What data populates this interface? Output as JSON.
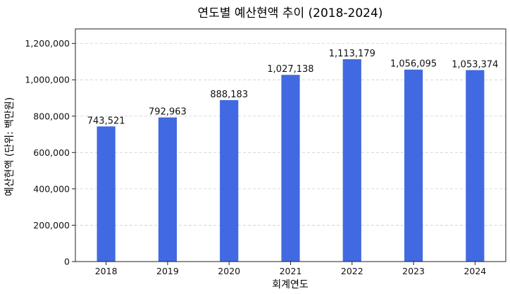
{
  "chart_data": {
    "type": "bar",
    "title": "연도별 예산현액 추이 (2018-2024)",
    "xlabel": "회계연도",
    "ylabel": "예산현액 (단위: 백만원)",
    "categories": [
      "2018",
      "2019",
      "2020",
      "2021",
      "2022",
      "2023",
      "2024"
    ],
    "values": [
      743521,
      792963,
      888183,
      1027138,
      1113179,
      1056095,
      1053374
    ],
    "value_labels": [
      "743,521",
      "792,963",
      "888,183",
      "1,027,138",
      "1,113,179",
      "1,056,095",
      "1,053,374"
    ],
    "ylim": [
      0,
      1280000
    ],
    "yticks": [
      0,
      200000,
      400000,
      600000,
      800000,
      1000000,
      1200000
    ],
    "ytick_labels": [
      "0",
      "200,000",
      "400,000",
      "600,000",
      "800,000",
      "1,000,000",
      "1,200,000"
    ],
    "bar_color": "#4169E1",
    "grid": "y-dashed",
    "legend": "none"
  }
}
